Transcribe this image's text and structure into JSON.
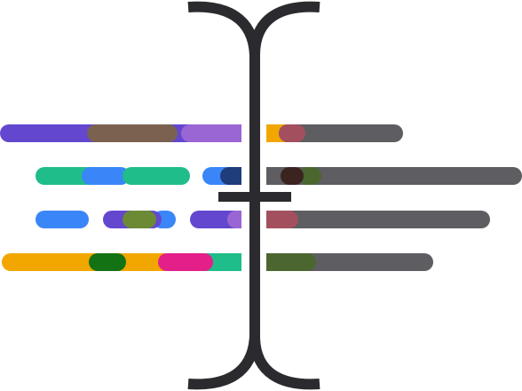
{
  "palette": {
    "cursor": "#2b2b2f",
    "purple": "#6347cf",
    "violet": "#9a66d4",
    "brown": "#7b6250",
    "orange": "#f2a700",
    "rose": "#a2505e",
    "gray": "#5e5d62",
    "teal": "#1fbd8a",
    "blue": "#3a86f8",
    "navy": "#1f3d7a",
    "olive": "#4c6630",
    "dark-brown": "#3b2420",
    "green": "#137213",
    "magenta": "#e41f8a",
    "moss": "#6c8a34"
  },
  "cursor": {
    "shape": "text-cursor-ibeam",
    "color": "cursor"
  },
  "rows": [
    {
      "left": [
        {
          "name": "purple-pill",
          "color": "purple"
        },
        {
          "name": "brown-pill",
          "color": "brown"
        },
        {
          "name": "violet-pill",
          "color": "violet"
        }
      ],
      "right": [
        {
          "name": "orange-pill",
          "color": "orange"
        },
        {
          "name": "gray-pill",
          "color": "gray"
        },
        {
          "name": "rose-pill",
          "color": "rose"
        }
      ]
    },
    {
      "left": [
        {
          "name": "teal-pill",
          "color": "teal"
        },
        {
          "name": "blue-pill",
          "color": "blue"
        },
        {
          "name": "teal-pill",
          "color": "teal"
        },
        {
          "name": "blue-pill",
          "color": "blue"
        },
        {
          "name": "navy-pill",
          "color": "navy"
        }
      ],
      "right": [
        {
          "name": "navy-pill",
          "color": "navy"
        },
        {
          "name": "gray-pill",
          "color": "gray"
        },
        {
          "name": "olive-pill",
          "color": "olive"
        },
        {
          "name": "dark-brown-pill",
          "color": "dark-brown"
        }
      ]
    },
    {
      "left": [
        {
          "name": "blue-pill",
          "color": "blue"
        },
        {
          "name": "blue-pill",
          "color": "blue"
        },
        {
          "name": "purple-pill",
          "color": "purple"
        },
        {
          "name": "moss-pill",
          "color": "moss"
        },
        {
          "name": "purple-pill",
          "color": "purple"
        },
        {
          "name": "violet-pill",
          "color": "violet"
        }
      ],
      "right": [
        {
          "name": "gray-pill",
          "color": "gray"
        },
        {
          "name": "rose-pill",
          "color": "rose"
        }
      ]
    },
    {
      "left": [
        {
          "name": "orange-pill",
          "color": "orange"
        },
        {
          "name": "green-pill",
          "color": "green"
        },
        {
          "name": "teal-pill",
          "color": "teal"
        },
        {
          "name": "magenta-pill",
          "color": "magenta"
        }
      ],
      "right": [
        {
          "name": "gray-pill",
          "color": "gray"
        },
        {
          "name": "olive-pill",
          "color": "olive"
        }
      ]
    }
  ]
}
